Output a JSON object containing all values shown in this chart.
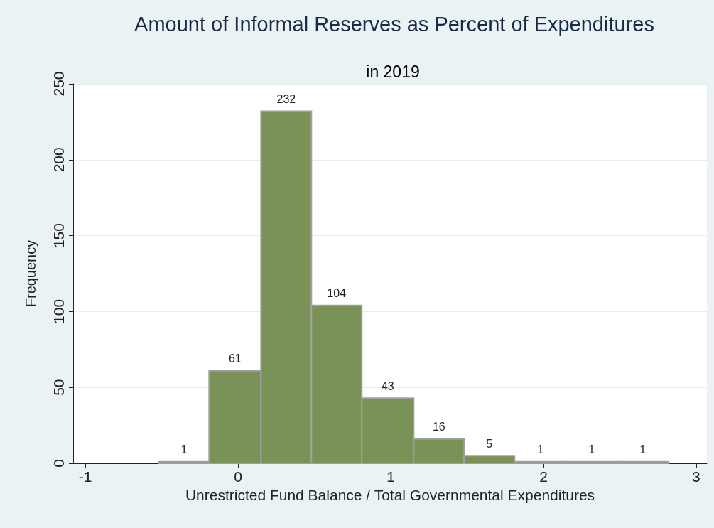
{
  "chart_data": {
    "type": "histogram",
    "title": "Amount of Informal Reserves as Percent of Expenditures",
    "subtitle": "in 2019",
    "xlabel": "Unrestricted Fund Balance / Total Governmental Expenditures",
    "ylabel": "Frequency",
    "bins": [
      -0.52,
      -0.19,
      0.15,
      0.48,
      0.81,
      1.15,
      1.48,
      1.81,
      2.15,
      2.48,
      2.82
    ],
    "values": [
      1,
      61,
      232,
      104,
      43,
      16,
      5,
      1,
      1,
      1
    ],
    "color": "#7a9257",
    "data_labels": true,
    "grid": "y",
    "xlim": [
      -1.08,
      3.07
    ],
    "xticks": [
      -1,
      0,
      1,
      2,
      3
    ],
    "ylim": [
      0,
      250
    ],
    "yticks": [
      0,
      50,
      100,
      150,
      200,
      250
    ]
  }
}
